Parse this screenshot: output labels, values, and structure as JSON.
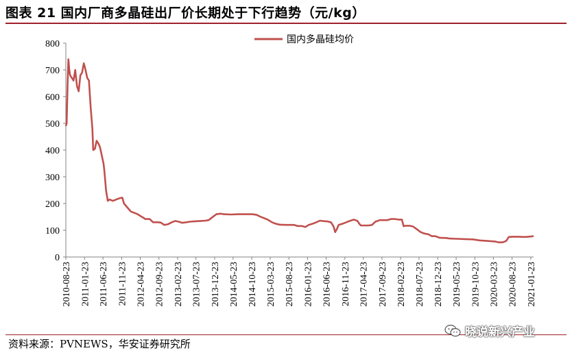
{
  "title": "图表 21 国内厂商多晶硅出厂价长期处于下行趋势（元/kg）",
  "source": "资料来源：PVNEWS，华安证券研究所",
  "watermark": "晓说新兴产业",
  "colors": {
    "series": "#c0504d",
    "accent_rule": "#a0202a"
  },
  "chart_data": {
    "type": "line",
    "title": "",
    "xlabel": "",
    "ylabel": "",
    "ylim": [
      0,
      800
    ],
    "yticks": [
      0,
      100,
      200,
      300,
      400,
      500,
      600,
      700,
      800
    ],
    "xlim": [
      "2010-08-23",
      "2021-02-15"
    ],
    "xticks": [
      "2010-08-23",
      "2011-01-23",
      "2011-06-23",
      "2011-11-23",
      "2012-04-23",
      "2012-09-23",
      "2013-02-23",
      "2013-07-23",
      "2013-12-23",
      "2014-05-23",
      "2014-10-23",
      "2015-03-23",
      "2015-08-23",
      "2016-01-23",
      "2016-06-23",
      "2016-11-23",
      "2017-04-23",
      "2017-09-23",
      "2018-02-23",
      "2018-07-23",
      "2018-12-23",
      "2019-05-23",
      "2019-10-23",
      "2020-03-23",
      "2020-08-23",
      "2021-01-23"
    ],
    "legend": "top-center",
    "grid": false,
    "series": [
      {
        "name": "国内多晶硅均价",
        "color": "#c0504d",
        "points": [
          [
            "2010-08-23",
            490
          ],
          [
            "2010-08-30",
            500
          ],
          [
            "2010-09-06",
            640
          ],
          [
            "2010-09-13",
            740
          ],
          [
            "2010-09-20",
            700
          ],
          [
            "2010-09-27",
            680
          ],
          [
            "2010-10-11",
            670
          ],
          [
            "2010-10-25",
            660
          ],
          [
            "2010-11-08",
            700
          ],
          [
            "2010-11-22",
            640
          ],
          [
            "2010-12-06",
            620
          ],
          [
            "2010-12-20",
            680
          ],
          [
            "2011-01-03",
            690
          ],
          [
            "2011-01-17",
            725
          ],
          [
            "2011-01-31",
            700
          ],
          [
            "2011-02-14",
            670
          ],
          [
            "2011-02-28",
            660
          ],
          [
            "2011-03-14",
            560
          ],
          [
            "2011-03-28",
            480
          ],
          [
            "2011-04-04",
            400
          ],
          [
            "2011-04-18",
            405
          ],
          [
            "2011-05-02",
            435
          ],
          [
            "2011-05-16",
            425
          ],
          [
            "2011-05-30",
            410
          ],
          [
            "2011-06-13",
            380
          ],
          [
            "2011-06-27",
            350
          ],
          [
            "2011-07-04",
            325
          ],
          [
            "2011-07-18",
            250
          ],
          [
            "2011-08-01",
            210
          ],
          [
            "2011-08-15",
            215
          ],
          [
            "2011-09-12",
            210
          ],
          [
            "2011-10-10",
            215
          ],
          [
            "2011-11-07",
            220
          ],
          [
            "2011-11-28",
            222
          ],
          [
            "2011-12-12",
            200
          ],
          [
            "2012-01-09",
            185
          ],
          [
            "2012-02-06",
            170
          ],
          [
            "2012-03-05",
            165
          ],
          [
            "2012-04-02",
            160
          ],
          [
            "2012-05-07",
            150
          ],
          [
            "2012-06-04",
            142
          ],
          [
            "2012-07-09",
            142
          ],
          [
            "2012-08-06",
            130
          ],
          [
            "2012-09-10",
            130
          ],
          [
            "2012-10-08",
            129
          ],
          [
            "2012-11-05",
            120
          ],
          [
            "2012-12-03",
            122
          ],
          [
            "2013-01-07",
            130
          ],
          [
            "2013-02-04",
            135
          ],
          [
            "2013-03-04",
            132
          ],
          [
            "2013-04-01",
            128
          ],
          [
            "2013-05-06",
            130
          ],
          [
            "2013-06-03",
            132
          ],
          [
            "2013-07-01",
            133
          ],
          [
            "2013-08-05",
            134
          ],
          [
            "2013-09-02",
            135
          ],
          [
            "2013-10-07",
            136
          ],
          [
            "2013-11-04",
            138
          ],
          [
            "2013-12-02",
            148
          ],
          [
            "2014-01-06",
            160
          ],
          [
            "2014-02-10",
            162
          ],
          [
            "2014-03-10",
            160
          ],
          [
            "2014-05-05",
            159
          ],
          [
            "2014-07-07",
            160
          ],
          [
            "2014-09-08",
            160
          ],
          [
            "2014-10-27",
            160
          ],
          [
            "2014-12-01",
            158
          ],
          [
            "2015-01-05",
            150
          ],
          [
            "2015-02-02",
            145
          ],
          [
            "2015-03-02",
            140
          ],
          [
            "2015-04-06",
            130
          ],
          [
            "2015-05-04",
            125
          ],
          [
            "2015-06-08",
            121
          ],
          [
            "2015-08-03",
            120
          ],
          [
            "2015-10-05",
            120
          ],
          [
            "2015-11-02",
            116
          ],
          [
            "2015-12-07",
            116
          ],
          [
            "2016-01-04",
            112
          ],
          [
            "2016-02-01",
            120
          ],
          [
            "2016-03-07",
            125
          ],
          [
            "2016-04-04",
            130
          ],
          [
            "2016-05-02",
            136
          ],
          [
            "2016-06-06",
            134
          ],
          [
            "2016-07-04",
            133
          ],
          [
            "2016-08-01",
            130
          ],
          [
            "2016-08-22",
            115
          ],
          [
            "2016-09-05",
            93
          ],
          [
            "2016-09-19",
            105
          ],
          [
            "2016-10-03",
            120
          ],
          [
            "2016-11-07",
            125
          ],
          [
            "2016-12-05",
            130
          ],
          [
            "2017-01-02",
            135
          ],
          [
            "2017-02-06",
            140
          ],
          [
            "2017-03-06",
            135
          ],
          [
            "2017-03-20",
            125
          ],
          [
            "2017-04-03",
            118
          ],
          [
            "2017-05-01",
            118
          ],
          [
            "2017-06-05",
            118
          ],
          [
            "2017-07-03",
            120
          ],
          [
            "2017-07-31",
            132
          ],
          [
            "2017-09-04",
            138
          ],
          [
            "2017-10-02",
            138
          ],
          [
            "2017-11-06",
            138
          ],
          [
            "2017-12-04",
            142
          ],
          [
            "2018-01-08",
            142
          ],
          [
            "2018-02-05",
            140
          ],
          [
            "2018-03-05",
            140
          ],
          [
            "2018-03-19",
            115
          ],
          [
            "2018-04-02",
            117
          ],
          [
            "2018-05-07",
            117
          ],
          [
            "2018-06-04",
            114
          ],
          [
            "2018-07-02",
            105
          ],
          [
            "2018-08-06",
            93
          ],
          [
            "2018-09-03",
            88
          ],
          [
            "2018-10-08",
            85
          ],
          [
            "2018-11-05",
            78
          ],
          [
            "2018-12-03",
            78
          ],
          [
            "2019-01-07",
            72
          ],
          [
            "2019-03-04",
            71
          ],
          [
            "2019-04-01",
            69
          ],
          [
            "2019-06-03",
            68
          ],
          [
            "2019-08-05",
            67
          ],
          [
            "2019-10-07",
            66
          ],
          [
            "2019-12-02",
            62
          ],
          [
            "2020-02-03",
            60
          ],
          [
            "2020-04-06",
            58
          ],
          [
            "2020-05-04",
            55
          ],
          [
            "2020-06-08",
            55
          ],
          [
            "2020-07-06",
            60
          ],
          [
            "2020-07-27",
            75
          ],
          [
            "2020-08-24",
            76
          ],
          [
            "2020-10-05",
            76
          ],
          [
            "2020-12-07",
            75
          ],
          [
            "2021-01-04",
            76
          ],
          [
            "2021-02-15",
            78
          ]
        ]
      }
    ]
  }
}
